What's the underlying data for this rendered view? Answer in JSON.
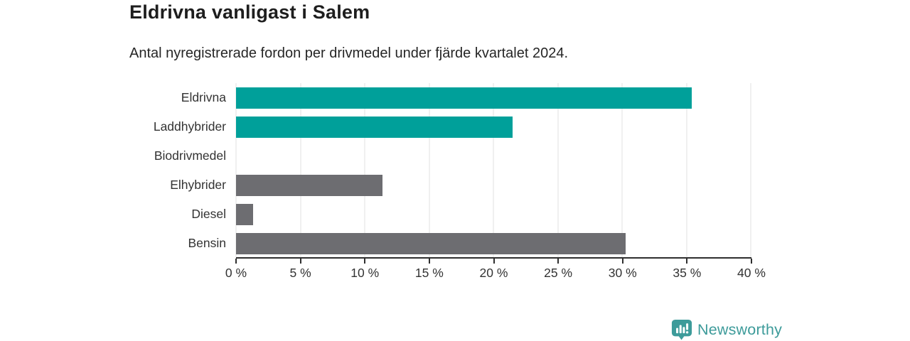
{
  "header": {
    "title": "Eldrivna vanligast i Salem",
    "subtitle": "Antal nyregistrerade fordon per drivmedel under fjärde kvartalet 2024."
  },
  "chart_data": {
    "type": "bar",
    "orientation": "horizontal",
    "title": "Eldrivna vanligast i Salem",
    "subtitle": "Antal nyregistrerade fordon per drivmedel under fjärde kvartalet 2024.",
    "categories": [
      "Eldrivna",
      "Laddhybrider",
      "Biodrivmedel",
      "Elhybrider",
      "Diesel",
      "Bensin"
    ],
    "values": [
      35.4,
      21.5,
      0,
      11.4,
      1.3,
      30.3
    ],
    "unit": "%",
    "bar_colors": [
      "#00a09a",
      "#00a09a",
      "#6d6d71",
      "#6d6d71",
      "#6d6d71",
      "#6d6d71"
    ],
    "xlim": [
      0,
      40
    ],
    "xticks": [
      0,
      5,
      10,
      15,
      20,
      25,
      30,
      35,
      40
    ],
    "xtick_labels": [
      "0 %",
      "5 %",
      "10 %",
      "15 %",
      "20 %",
      "25 %",
      "30 %",
      "35 %",
      "40 %"
    ],
    "grid": true,
    "legend": false
  },
  "footer": {
    "brand": "Newsworthy",
    "logo_icon": "bar-chart-speech-bubble-icon"
  },
  "colors": {
    "accent_teal": "#00a09a",
    "neutral_gray": "#6d6d71",
    "gridline": "#e2e2e2",
    "axis": "#2f2f2f",
    "text_dark": "#1e1e1e",
    "brand_teal": "#3d9b9a"
  }
}
